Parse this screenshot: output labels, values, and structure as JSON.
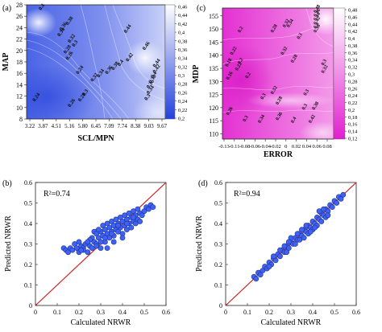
{
  "chart_data": [
    {
      "panel": "a",
      "type": "heatmap",
      "xlabel": "SCL/MPN",
      "ylabel": "MAP",
      "xticks": [
        "3.22",
        "3.87",
        "4.51",
        "5.16",
        "5.80",
        "6.45",
        "7.09",
        "7.74",
        "8.38",
        "9.03",
        "9.67"
      ],
      "yticks": [
        8,
        10,
        12,
        14,
        16,
        18,
        20,
        22,
        24,
        26,
        28
      ],
      "xlim": [
        3.22,
        9.67
      ],
      "ylim": [
        8,
        28
      ],
      "colorbar_ticks": [
        0.2,
        0.22,
        0.24,
        0.26,
        0.28,
        0.3,
        0.32,
        0.34,
        0.36,
        0.38,
        0.4,
        0.42,
        0.44,
        0.46
      ],
      "colorbar_ticks_text": [
        "0,2",
        "0,22",
        "0,24",
        "0,26",
        "0,28",
        "0,3",
        "0,32",
        "0,34",
        "0,36",
        "0,38",
        "0,4",
        "0,42",
        "0,44",
        "0,46"
      ],
      "colorbar_range": [
        0.2,
        0.46
      ],
      "contour_labels": [
        {
          "text": "0.4",
          "x": 3.8,
          "y": 27.0
        },
        {
          "text": "0.38",
          "x": 5.1,
          "y": 24.4
        },
        {
          "text": "0.36",
          "x": 4.8,
          "y": 23.4
        },
        {
          "text": "0.34",
          "x": 4.7,
          "y": 22.4
        },
        {
          "text": "0.32",
          "x": 5.2,
          "y": 21.3
        },
        {
          "text": "0.3",
          "x": 5.4,
          "y": 20.6
        },
        {
          "text": "0.28",
          "x": 5.0,
          "y": 19.4
        },
        {
          "text": "0.26",
          "x": 5.1,
          "y": 18.3
        },
        {
          "text": "0.44",
          "x": 7.9,
          "y": 23.0
        },
        {
          "text": "0.46",
          "x": 8.8,
          "y": 20.0
        },
        {
          "text": "0.42",
          "x": 8.0,
          "y": 18.0
        },
        {
          "text": "0.4",
          "x": 7.6,
          "y": 17.2
        },
        {
          "text": "0.38",
          "x": 7.3,
          "y": 16.5
        },
        {
          "text": "0.36",
          "x": 7.0,
          "y": 15.8
        },
        {
          "text": "0.34",
          "x": 6.6,
          "y": 15.2
        },
        {
          "text": "0.32",
          "x": 6.3,
          "y": 14.5
        },
        {
          "text": "0.3",
          "x": 5.9,
          "y": 12.0
        },
        {
          "text": "0.28",
          "x": 5.7,
          "y": 11.0
        },
        {
          "text": "0.26",
          "x": 5.2,
          "y": 10.0
        },
        {
          "text": "0.24",
          "x": 3.5,
          "y": 11.0
        },
        {
          "text": "0.24",
          "x": 5.6,
          "y": 15.8
        },
        {
          "text": "0.44",
          "x": 9.3,
          "y": 17.0
        },
        {
          "text": "0.42",
          "x": 9.3,
          "y": 16.0
        },
        {
          "text": "0.4",
          "x": 9.2,
          "y": 15.1
        },
        {
          "text": "0.38",
          "x": 9.1,
          "y": 14.2
        },
        {
          "text": "0.36",
          "x": 9.0,
          "y": 13.3
        },
        {
          "text": "0.34",
          "x": 9.0,
          "y": 12.3
        },
        {
          "text": "0.3",
          "x": 8.9,
          "y": 11.2
        }
      ]
    },
    {
      "panel": "c",
      "type": "heatmap",
      "xlabel": "ERROR",
      "ylabel": "MDP",
      "xticks": [
        "-0.13",
        "-0.11",
        "-0.08",
        "-0.06",
        "-0.04",
        "-0.02",
        "0",
        "0.02",
        "0.04",
        "0.06",
        "0.08"
      ],
      "yticks": [
        110,
        115,
        120,
        125,
        130,
        135,
        140,
        145,
        150,
        155
      ],
      "xlim": [
        -0.13,
        0.09
      ],
      "ylim": [
        108,
        158
      ],
      "colorbar_ticks": [
        0.12,
        0.14,
        0.16,
        0.18,
        0.2,
        0.22,
        0.24,
        0.26,
        0.28,
        0.3,
        0.32,
        0.34,
        0.36,
        0.38,
        0.4,
        0.42,
        0.44,
        0.46,
        0.48
      ],
      "colorbar_ticks_text": [
        "0,12",
        "0,14",
        "0,16",
        "0,18",
        "0,2",
        "0,22",
        "0,24",
        "0,26",
        "0,28",
        "0,3",
        "0,32",
        "0,34",
        "0,36",
        "0,38",
        "0,4",
        "0,42",
        "0,44",
        "0,46",
        "0,48"
      ],
      "colorbar_range": [
        0.12,
        0.48
      ],
      "contour_labels": [
        {
          "text": "0.48",
          "x": 0.055,
          "y": 156.0
        },
        {
          "text": "0.46",
          "x": 0.055,
          "y": 154.5
        },
        {
          "text": "0.44",
          "x": 0.055,
          "y": 153.0
        },
        {
          "text": "0.42",
          "x": 0.055,
          "y": 151.5
        },
        {
          "text": "0.4",
          "x": 0.055,
          "y": 150.0
        },
        {
          "text": "0.36",
          "x": 0.055,
          "y": 148.5
        },
        {
          "text": "0.32",
          "x": -0.006,
          "y": 150.5
        },
        {
          "text": "0.34",
          "x": 0.002,
          "y": 150.5
        },
        {
          "text": "0.28",
          "x": -0.03,
          "y": 148.5
        },
        {
          "text": "0.3",
          "x": 0.022,
          "y": 146.0
        },
        {
          "text": "0.2",
          "x": -0.095,
          "y": 148.5
        },
        {
          "text": "0.22",
          "x": -0.11,
          "y": 140.0
        },
        {
          "text": "0.2",
          "x": -0.095,
          "y": 136.5
        },
        {
          "text": "0.22",
          "x": -0.1,
          "y": 134.0
        },
        {
          "text": "0.18",
          "x": -0.12,
          "y": 135.5
        },
        {
          "text": "0.16",
          "x": -0.118,
          "y": 130.5
        },
        {
          "text": "0.28",
          "x": 0.01,
          "y": 137.0
        },
        {
          "text": "0.32",
          "x": -0.01,
          "y": 140.0
        },
        {
          "text": "0.3",
          "x": 0.07,
          "y": 136.0
        },
        {
          "text": "0.32",
          "x": 0.07,
          "y": 133.0
        },
        {
          "text": "0.2",
          "x": -0.08,
          "y": 131.0
        },
        {
          "text": "0.32",
          "x": -0.03,
          "y": 125.0
        },
        {
          "text": "0.3",
          "x": -0.05,
          "y": 123.0
        },
        {
          "text": "0.28",
          "x": -0.02,
          "y": 121.0
        },
        {
          "text": "0.3",
          "x": 0.035,
          "y": 124.5
        },
        {
          "text": "0.3",
          "x": 0.032,
          "y": 119.0
        },
        {
          "text": "0.26",
          "x": -0.118,
          "y": 117.0
        },
        {
          "text": "0.3",
          "x": -0.085,
          "y": 114.5
        },
        {
          "text": "0.34",
          "x": -0.055,
          "y": 114.0
        },
        {
          "text": "0.36",
          "x": -0.02,
          "y": 115.0
        },
        {
          "text": "0.4",
          "x": 0.01,
          "y": 114.0
        },
        {
          "text": "0.38",
          "x": 0.052,
          "y": 119.0
        },
        {
          "text": "0.42",
          "x": 0.045,
          "y": 114.0
        }
      ]
    },
    {
      "panel": "b",
      "type": "scatter",
      "xlabel": "Calculated NRWR",
      "ylabel": "Predicted NRWR",
      "xlim": [
        0,
        0.6
      ],
      "ylim": [
        0,
        0.6
      ],
      "xticks": [
        0,
        0.1,
        0.2,
        0.3,
        0.4,
        0.5,
        0.6
      ],
      "yticks": [
        0,
        0.1,
        0.2,
        0.3,
        0.4,
        0.5,
        0.6
      ],
      "annotation": "R²=0.74",
      "reference_line": [
        [
          0,
          0
        ],
        [
          0.6,
          0.6
        ]
      ],
      "points": [
        [
          0.13,
          0.28
        ],
        [
          0.14,
          0.27
        ],
        [
          0.15,
          0.26
        ],
        [
          0.16,
          0.28
        ],
        [
          0.17,
          0.27
        ],
        [
          0.18,
          0.3
        ],
        [
          0.19,
          0.28
        ],
        [
          0.2,
          0.26
        ],
        [
          0.2,
          0.31
        ],
        [
          0.21,
          0.29
        ],
        [
          0.22,
          0.28
        ],
        [
          0.22,
          0.27
        ],
        [
          0.23,
          0.3
        ],
        [
          0.24,
          0.26
        ],
        [
          0.25,
          0.29
        ],
        [
          0.26,
          0.33
        ],
        [
          0.27,
          0.31
        ],
        [
          0.27,
          0.36
        ],
        [
          0.28,
          0.3
        ],
        [
          0.28,
          0.35
        ],
        [
          0.29,
          0.33
        ],
        [
          0.3,
          0.28
        ],
        [
          0.3,
          0.36
        ],
        [
          0.31,
          0.34
        ],
        [
          0.31,
          0.39
        ],
        [
          0.32,
          0.31
        ],
        [
          0.32,
          0.37
        ],
        [
          0.33,
          0.35
        ],
        [
          0.33,
          0.4
        ],
        [
          0.34,
          0.33
        ],
        [
          0.34,
          0.38
        ],
        [
          0.35,
          0.36
        ],
        [
          0.35,
          0.41
        ],
        [
          0.36,
          0.34
        ],
        [
          0.36,
          0.39
        ],
        [
          0.37,
          0.37
        ],
        [
          0.37,
          0.42
        ],
        [
          0.38,
          0.36
        ],
        [
          0.38,
          0.4
        ],
        [
          0.39,
          0.38
        ],
        [
          0.39,
          0.43
        ],
        [
          0.4,
          0.35
        ],
        [
          0.4,
          0.41
        ],
        [
          0.41,
          0.39
        ],
        [
          0.41,
          0.44
        ],
        [
          0.42,
          0.37
        ],
        [
          0.42,
          0.42
        ],
        [
          0.43,
          0.4
        ],
        [
          0.43,
          0.45
        ],
        [
          0.44,
          0.38
        ],
        [
          0.44,
          0.43
        ],
        [
          0.45,
          0.41
        ],
        [
          0.45,
          0.46
        ],
        [
          0.46,
          0.4
        ],
        [
          0.46,
          0.44
        ],
        [
          0.47,
          0.42
        ],
        [
          0.47,
          0.47
        ],
        [
          0.48,
          0.41
        ],
        [
          0.48,
          0.45
        ],
        [
          0.49,
          0.44
        ],
        [
          0.5,
          0.46
        ],
        [
          0.51,
          0.48
        ],
        [
          0.52,
          0.47
        ],
        [
          0.53,
          0.49
        ],
        [
          0.54,
          0.48
        ],
        [
          0.25,
          0.32
        ],
        [
          0.29,
          0.37
        ],
        [
          0.33,
          0.28
        ],
        [
          0.36,
          0.31
        ],
        [
          0.4,
          0.33
        ],
        [
          0.28,
          0.29
        ],
        [
          0.3,
          0.31
        ],
        [
          0.32,
          0.33
        ],
        [
          0.35,
          0.35
        ],
        [
          0.38,
          0.39
        ],
        [
          0.42,
          0.4
        ],
        [
          0.45,
          0.43
        ],
        [
          0.26,
          0.28
        ],
        [
          0.24,
          0.31
        ],
        [
          0.21,
          0.27
        ]
      ]
    },
    {
      "panel": "d",
      "type": "scatter",
      "xlabel": "Calculated NRWR",
      "ylabel": "Predicted NRWR",
      "xlim": [
        0,
        0.6
      ],
      "ylim": [
        0,
        0.6
      ],
      "xticks": [
        0,
        0.1,
        0.2,
        0.3,
        0.4,
        0.5,
        0.6
      ],
      "yticks": [
        0,
        0.1,
        0.2,
        0.3,
        0.4,
        0.5,
        0.6
      ],
      "annotation": "R²=0.94",
      "reference_line": [
        [
          0,
          0
        ],
        [
          0.6,
          0.6
        ]
      ],
      "points": [
        [
          0.13,
          0.14
        ],
        [
          0.14,
          0.13
        ],
        [
          0.15,
          0.16
        ],
        [
          0.16,
          0.15
        ],
        [
          0.17,
          0.17
        ],
        [
          0.18,
          0.19
        ],
        [
          0.19,
          0.18
        ],
        [
          0.2,
          0.21
        ],
        [
          0.21,
          0.2
        ],
        [
          0.22,
          0.23
        ],
        [
          0.23,
          0.22
        ],
        [
          0.24,
          0.25
        ],
        [
          0.25,
          0.24
        ],
        [
          0.26,
          0.27
        ],
        [
          0.27,
          0.26
        ],
        [
          0.28,
          0.29
        ],
        [
          0.29,
          0.28
        ],
        [
          0.3,
          0.31
        ],
        [
          0.31,
          0.3
        ],
        [
          0.32,
          0.33
        ],
        [
          0.33,
          0.32
        ],
        [
          0.34,
          0.35
        ],
        [
          0.35,
          0.34
        ],
        [
          0.36,
          0.37
        ],
        [
          0.37,
          0.36
        ],
        [
          0.38,
          0.39
        ],
        [
          0.39,
          0.38
        ],
        [
          0.4,
          0.41
        ],
        [
          0.41,
          0.4
        ],
        [
          0.42,
          0.43
        ],
        [
          0.43,
          0.42
        ],
        [
          0.44,
          0.45
        ],
        [
          0.45,
          0.44
        ],
        [
          0.46,
          0.47
        ],
        [
          0.47,
          0.46
        ],
        [
          0.48,
          0.49
        ],
        [
          0.49,
          0.48
        ],
        [
          0.5,
          0.51
        ],
        [
          0.51,
          0.5
        ],
        [
          0.52,
          0.53
        ],
        [
          0.53,
          0.52
        ],
        [
          0.54,
          0.54
        ],
        [
          0.3,
          0.33
        ],
        [
          0.33,
          0.35
        ],
        [
          0.36,
          0.33
        ],
        [
          0.38,
          0.35
        ],
        [
          0.4,
          0.37
        ],
        [
          0.42,
          0.39
        ],
        [
          0.44,
          0.41
        ],
        [
          0.46,
          0.43
        ],
        [
          0.25,
          0.27
        ],
        [
          0.27,
          0.29
        ],
        [
          0.29,
          0.31
        ],
        [
          0.22,
          0.24
        ],
        [
          0.35,
          0.37
        ],
        [
          0.41,
          0.38
        ],
        [
          0.43,
          0.46
        ],
        [
          0.47,
          0.44
        ],
        [
          0.32,
          0.3
        ],
        [
          0.2,
          0.19
        ],
        [
          0.45,
          0.47
        ],
        [
          0.37,
          0.39
        ],
        [
          0.39,
          0.36
        ],
        [
          0.34,
          0.32
        ],
        [
          0.28,
          0.26
        ]
      ]
    }
  ],
  "panel_labels": [
    "(a)",
    "(c)",
    "(b)",
    "(d)"
  ]
}
